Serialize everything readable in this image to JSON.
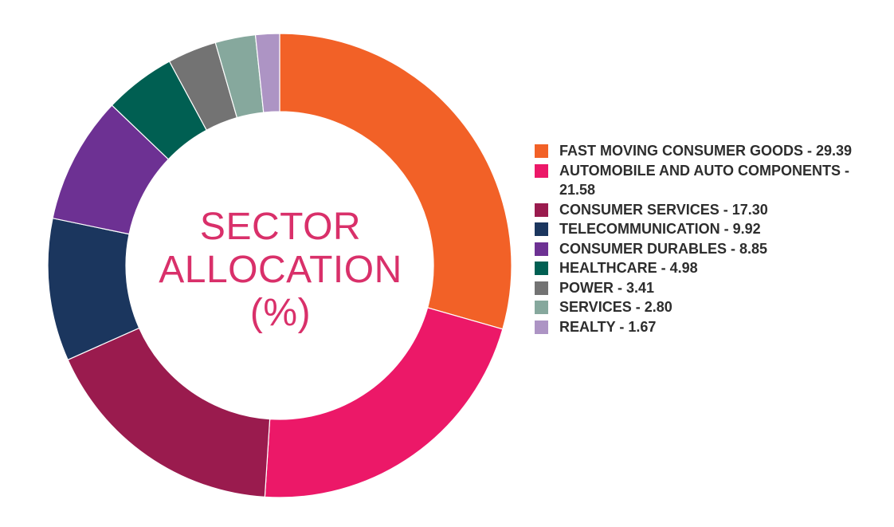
{
  "chart_data": {
    "type": "pie",
    "style": "donut",
    "title_lines": [
      "SECTOR",
      "ALLOCATION",
      "(%)"
    ],
    "categories": [
      "FAST MOVING CONSUMER GOODS",
      "AUTOMOBILE AND AUTO COMPONENTS",
      "CONSUMER SERVICES",
      "TELECOMMUNICATION",
      "CONSUMER DURABLES",
      "HEALTHCARE",
      "POWER",
      "SERVICES",
      "REALTY"
    ],
    "values": [
      29.39,
      21.58,
      17.3,
      9.92,
      8.85,
      4.98,
      3.41,
      2.8,
      1.67
    ],
    "legend_labels": [
      "FAST MOVING CONSUMER GOODS - 29.39",
      "AUTOMOBILE AND AUTO COMPONENTS - 21.58",
      "CONSUMER SERVICES - 17.30",
      "TELECOMMUNICATION - 9.92",
      "CONSUMER DURABLES - 8.85",
      "HEALTHCARE - 4.98",
      "POWER - 3.41",
      "SERVICES - 2.80",
      "REALTY - 1.67"
    ],
    "colors": [
      "#f26127",
      "#ec1868",
      "#9a1b4e",
      "#1b365e",
      "#6d3193",
      "#005f52",
      "#737373",
      "#86a89d",
      "#ad94c4"
    ],
    "legend_position": "right",
    "start_angle": "top",
    "direction": "clockwise"
  }
}
